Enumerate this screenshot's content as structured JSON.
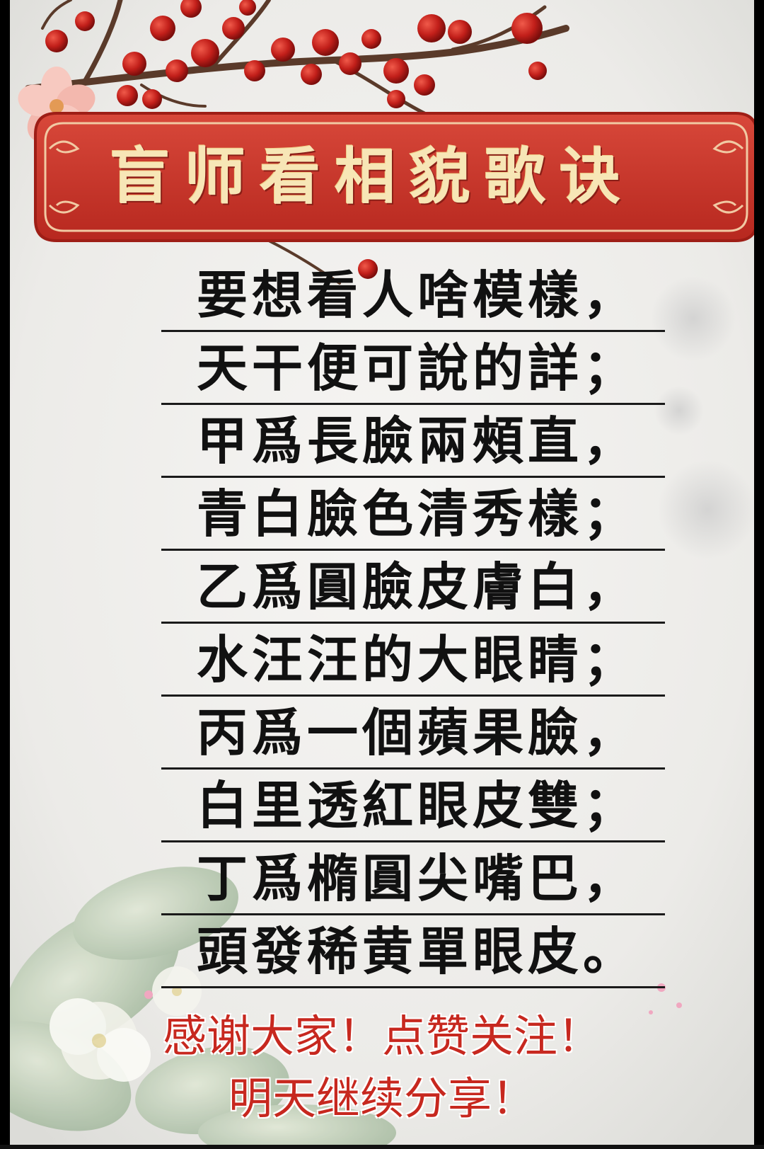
{
  "title": "盲师看相貌歌诀",
  "verses": [
    "要想看人啥模樣，",
    "天干便可說的詳；",
    "甲爲長臉兩頰直，",
    "青白臉色清秀樣；",
    "乙爲圓臉皮膚白，",
    "水汪汪的大眼睛；",
    "丙爲一個蘋果臉，",
    "白里透紅眼皮雙；",
    "丁爲橢圓尖嘴巴，",
    "頭發稀黄單眼皮。"
  ],
  "footer": {
    "line1": "感谢大家！点赞关注！",
    "line2": "明天继续分享！"
  },
  "colors": {
    "banner_red": "#c8372c",
    "title_gold": "#f7e6b6",
    "footer_red": "#c7281f",
    "text_black": "#111111"
  }
}
